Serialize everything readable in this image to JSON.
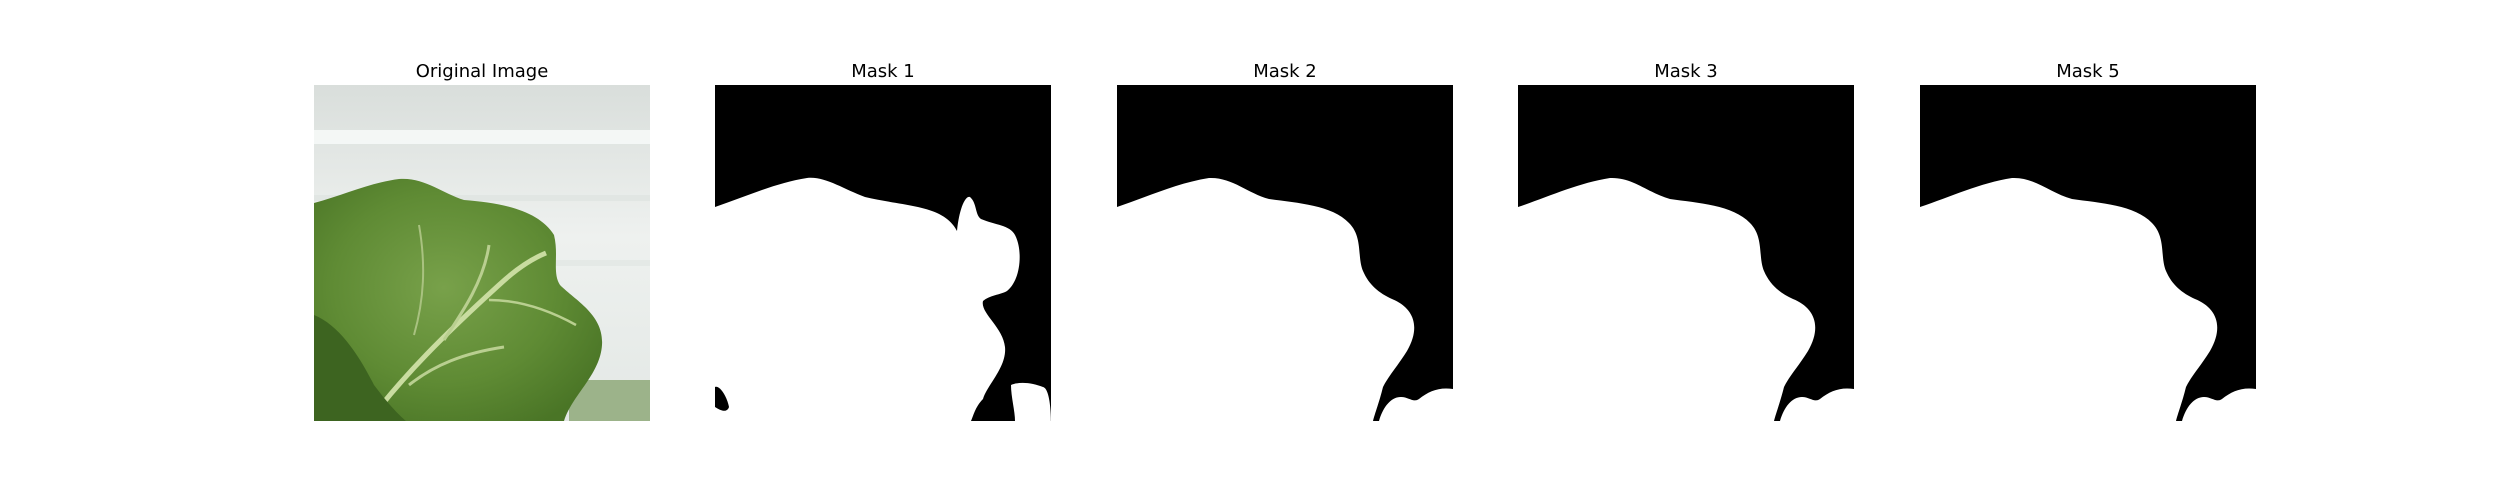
{
  "figure": {
    "panels": [
      {
        "title": "Original Image"
      },
      {
        "title": "Mask 1"
      },
      {
        "title": "Mask 2"
      },
      {
        "title": "Mask 3"
      },
      {
        "title": "Mask 5"
      }
    ]
  },
  "colors": {
    "mask_foreground": "#ffffff",
    "mask_background": "#000000",
    "leaf_green": "#5f8b34",
    "leaf_dark": "#3d6420",
    "wall_light": "#e6ebe8"
  }
}
